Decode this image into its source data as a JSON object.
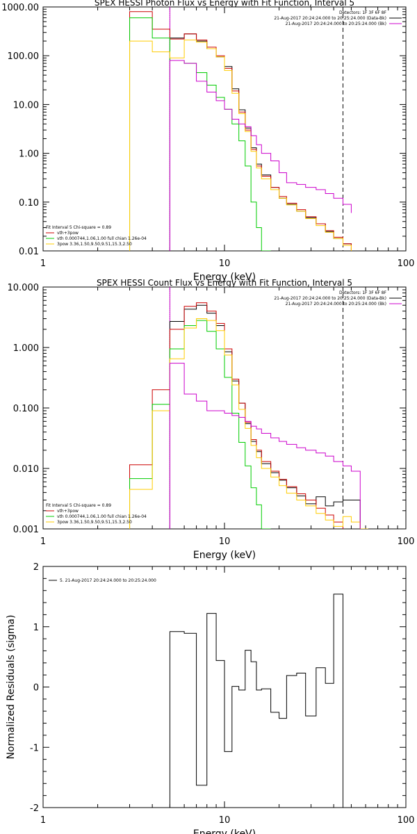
{
  "figure": {
    "background": "#ffffff"
  },
  "chart_data": [
    {
      "type": "line",
      "title": "SPEX HESSI Photon Flux vs Energy with Fit Function, Interval 5",
      "xlabel": "Energy (keV)",
      "ylabel": "",
      "xscale": "log",
      "yscale": "log",
      "xlim": [
        1,
        100
      ],
      "ylim": [
        0.01,
        1000
      ],
      "x_ticks": [
        "1",
        "10",
        "100"
      ],
      "y_ticks": [
        "0.01",
        "0.10",
        "1.00",
        "10.00",
        "100.00",
        "1000.00"
      ],
      "vlines": [
        {
          "x": 5.0,
          "style": "dotted",
          "color": "#000000"
        },
        {
          "x": 5.0,
          "style": "solid",
          "color": "#cc00cc"
        },
        {
          "x": 45.0,
          "style": "dashed",
          "color": "#000000"
        }
      ],
      "legend_top": {
        "placement": "top-right",
        "lines": [
          {
            "text": "Detectors: 1F 3F 6F 8F",
            "color": ""
          },
          {
            "text": "21-Aug-2017 20:24:24.000 to 20:25:24.000 (Data-Bk)",
            "color": "#000000"
          },
          {
            "text": "21-Aug-2017 20:24:24.000 to 20:25:24.000 (Bk)",
            "color": "#cc00cc"
          }
        ]
      },
      "legend_bottom": {
        "placement": "bottom-left",
        "lines": [
          {
            "text": "Fit Interval  5    Chi-square = 0.89",
            "color": ""
          },
          {
            "text": "vth+3pow",
            "color": "#cc0000"
          },
          {
            "text": "vth 0.000744,1.06,1.00  full chian 1.26e-04",
            "color": "#00cc00"
          },
          {
            "text": "3pow 3.36,1.50,9.50,9.51,15.3,2.50",
            "color": "#ffcc00"
          }
        ]
      },
      "edges": [
        3.0,
        4.0,
        5.0,
        6.0,
        7.0,
        8.0,
        9.0,
        10.0,
        11.0,
        12.0,
        13.0,
        14.0,
        15.0,
        16.0,
        18.0,
        20.0,
        22.0,
        25.0,
        28.0,
        32.0,
        36.0,
        40.0,
        45.0,
        50.0
      ],
      "series": [
        {
          "color": "#000000",
          "x_range": [
            5.0,
            45.0
          ],
          "values": [
            230,
            280,
            200,
            140,
            95,
            60,
            21,
            7.8,
            3.3,
            1.3,
            0.6,
            0.36,
            0.2,
            0.12,
            0.09,
            0.065,
            0.048,
            0.036,
            0.025,
            0.018,
            0.014,
            0.013
          ]
        },
        {
          "color": "#cc0000",
          "x_range": [
            3.0,
            45.0
          ],
          "values": [
            800,
            350,
            220,
            280,
            210,
            150,
            100,
            55,
            19,
            7.0,
            3.0,
            1.2,
            0.55,
            0.34,
            0.2,
            0.13,
            0.095,
            0.07,
            0.05,
            0.036,
            0.026,
            0.019,
            0.014
          ]
        },
        {
          "color": "#00cc00",
          "x_range": [
            3.0,
            20.0
          ],
          "values": [
            600,
            230,
            80,
            70,
            45,
            25,
            14,
            8,
            4,
            1.8,
            0.55,
            0.1,
            0.03,
            0.01
          ]
        },
        {
          "color": "#ffcc00",
          "x_range": [
            3.0,
            50.0
          ],
          "values": [
            200,
            120,
            90,
            210,
            190,
            140,
            95,
            50,
            17,
            6.5,
            2.8,
            1.1,
            0.5,
            0.3,
            0.18,
            0.12,
            0.088,
            0.065,
            0.046,
            0.033,
            0.024,
            0.018,
            0.013,
            0.01
          ]
        },
        {
          "color": "#cc00cc",
          "x_range": [
            5.0,
            45.0
          ],
          "values": [
            80,
            70,
            30,
            18,
            12,
            8,
            5.0,
            4.0,
            3.5,
            2.3,
            1.5,
            1.0,
            0.7,
            0.4,
            0.25,
            0.23,
            0.2,
            0.18,
            0.15,
            0.12,
            0.09,
            0.06
          ]
        }
      ]
    },
    {
      "type": "line",
      "title": "SPEX HESSI Count Flux vs Energy with Fit Function, Interval 5",
      "xlabel": "Energy (keV)",
      "ylabel": "",
      "xscale": "log",
      "yscale": "log",
      "xlim": [
        1,
        100
      ],
      "ylim": [
        0.001,
        10
      ],
      "x_ticks": [
        "1",
        "10",
        "100"
      ],
      "y_ticks": [
        "0.001",
        "0.010",
        "0.100",
        "1.000",
        "10.000"
      ],
      "vlines": [
        {
          "x": 5.0,
          "style": "dotted",
          "color": "#000000"
        },
        {
          "x": 5.0,
          "style": "solid",
          "color": "#cc00cc"
        },
        {
          "x": 45.0,
          "style": "dashed",
          "color": "#000000"
        }
      ],
      "legend_top": {
        "placement": "top-right",
        "lines": [
          {
            "text": "Detectors: 1F 3F 6F 8F",
            "color": ""
          },
          {
            "text": "21-Aug-2017 20:24:24.000 to 20:25:24.000 (Data-Bk)",
            "color": "#000000"
          },
          {
            "text": "21-Aug-2017 20:24:24.000 to 20:25:24.000 (Bk)",
            "color": "#cc00cc"
          }
        ]
      },
      "legend_bottom": {
        "placement": "bottom-left",
        "lines": [
          {
            "text": "Fit Interval  5    Chi-square = 0.89",
            "color": ""
          },
          {
            "text": "vth+3pow",
            "color": "#cc0000"
          },
          {
            "text": "vth 0.000744,1.06,1.00  full chian 1.26e-04",
            "color": "#00cc00"
          },
          {
            "text": "3pow 3.36,1.50,9.50,9.51,15.3,2.50",
            "color": "#ffcc00"
          }
        ]
      },
      "edges": [
        3.0,
        4.0,
        5.0,
        6.0,
        7.0,
        8.0,
        9.0,
        10.0,
        11.0,
        12.0,
        13.0,
        14.0,
        15.0,
        16.0,
        18.0,
        20.0,
        22.0,
        25.0,
        28.0,
        32.0,
        36.0,
        40.0,
        45.0,
        50.0,
        56.0,
        62.0
      ],
      "series": [
        {
          "color": "#000000",
          "x_range": [
            5.0,
            45.0
          ],
          "values": [
            2.7,
            4.3,
            5.0,
            3.7,
            2.3,
            0.85,
            0.28,
            0.12,
            0.055,
            0.028,
            0.019,
            0.012,
            0.0085,
            0.0064,
            0.0048,
            0.0035,
            0.0026,
            0.0034,
            0.0024,
            0.0028,
            0.003,
            0.003
          ]
        },
        {
          "color": "#cc0000",
          "x_range": [
            3.0,
            45.0
          ],
          "values": [
            0.0115,
            0.2,
            2.0,
            4.8,
            5.5,
            4.0,
            2.5,
            0.95,
            0.3,
            0.12,
            0.058,
            0.03,
            0.02,
            0.013,
            0.009,
            0.0066,
            0.005,
            0.0038,
            0.003,
            0.0022,
            0.0017,
            0.0013
          ]
        },
        {
          "color": "#00cc00",
          "x_range": [
            3.0,
            20.0
          ],
          "values": [
            0.0068,
            0.115,
            0.95,
            2.3,
            2.8,
            1.85,
            0.95,
            0.32,
            0.082,
            0.027,
            0.011,
            0.0048,
            0.0025,
            0.001
          ]
        },
        {
          "color": "#ffcc00",
          "x_range": [
            3.0,
            62.0
          ],
          "values": [
            0.0045,
            0.09,
            0.65,
            2.1,
            3.0,
            2.8,
            1.9,
            0.75,
            0.24,
            0.095,
            0.046,
            0.024,
            0.015,
            0.01,
            0.0072,
            0.0052,
            0.0039,
            0.003,
            0.0024,
            0.0018,
            0.0014,
            0.0011,
            0.0016,
            0.0013,
            0.001
          ]
        },
        {
          "color": "#cc00cc",
          "x_range": [
            5.0,
            45.0
          ],
          "values": [
            0.55,
            0.17,
            0.13,
            0.09,
            0.09,
            0.082,
            0.075,
            0.07,
            0.06,
            0.05,
            0.045,
            0.038,
            0.032,
            0.028,
            0.025,
            0.022,
            0.02,
            0.018,
            0.016,
            0.013,
            0.011,
            0.009
          ]
        }
      ]
    },
    {
      "type": "line",
      "title": "",
      "xlabel": "Energy (keV)",
      "ylabel": "Normalized Residuals (sigma)",
      "xscale": "log",
      "yscale": "linear",
      "xlim": [
        1,
        100
      ],
      "ylim": [
        -2,
        2
      ],
      "x_ticks": [
        "1",
        "10",
        "100"
      ],
      "y_ticks": [
        "-2",
        "-1",
        "0",
        "1",
        "2"
      ],
      "legend": {
        "placement": "top-left",
        "text": "5. 21-Aug-2017 20:24:24.000 to 20:25:24.000",
        "color": "#000000"
      },
      "edges": [
        5.0,
        6.0,
        7.0,
        8.0,
        9.0,
        10.0,
        11.0,
        12.0,
        13.0,
        14.0,
        15.0,
        16.0,
        18.0,
        20.0,
        22.0,
        25.0,
        28.0,
        32.0,
        36.0,
        40.0,
        45.0
      ],
      "series": [
        {
          "color": "#000000",
          "x_range": [
            5.0,
            45.0
          ],
          "drop_to": -2.0,
          "values": [
            0.92,
            0.89,
            -1.63,
            1.22,
            0.44,
            -1.07,
            0.01,
            -0.05,
            0.61,
            0.42,
            -0.05,
            -0.03,
            -0.42,
            -0.52,
            0.19,
            0.23,
            -0.48,
            0.32,
            0.06,
            1.54
          ]
        }
      ]
    }
  ]
}
